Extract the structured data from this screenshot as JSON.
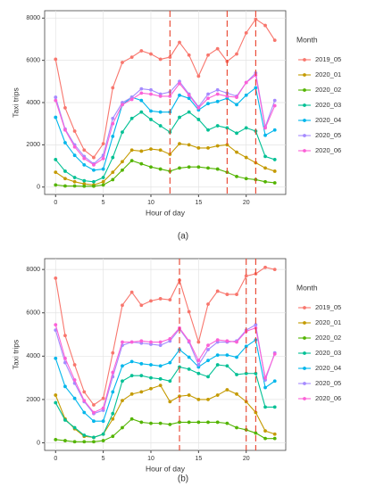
{
  "chart_data": [
    {
      "type": "line",
      "caption": "(a)",
      "x_label": "Hour of day",
      "y_label": "Taxi trips",
      "legend_title": "Month",
      "legend": "right",
      "grid": true,
      "x": [
        0,
        1,
        2,
        3,
        4,
        5,
        6,
        7,
        8,
        9,
        10,
        11,
        12,
        13,
        14,
        15,
        16,
        17,
        18,
        19,
        20,
        21,
        22,
        23
      ],
      "xlim": [
        -1.15,
        24.15
      ],
      "xticks": [
        0,
        5,
        10,
        15,
        20
      ],
      "ylim": [
        -350,
        8350
      ],
      "yticks": [
        0,
        2000,
        4000,
        6000,
        8000
      ],
      "vlines": [
        12,
        18,
        21
      ],
      "vline_color": "#e8402a",
      "series": [
        {
          "name": "2019_05",
          "color": "#F8766D",
          "values": [
            6050,
            3750,
            2650,
            1750,
            1400,
            2050,
            4700,
            5900,
            6150,
            6450,
            6300,
            6050,
            6150,
            6850,
            6250,
            5250,
            6250,
            6550,
            5950,
            6300,
            7300,
            7950,
            7650,
            6950
          ]
        },
        {
          "name": "2020_01",
          "color": "#C49A00",
          "values": [
            700,
            400,
            250,
            150,
            100,
            250,
            700,
            1200,
            1750,
            1700,
            1800,
            1750,
            1550,
            2050,
            2000,
            1850,
            1850,
            1950,
            2000,
            1650,
            1400,
            1150,
            900,
            750
          ]
        },
        {
          "name": "2020_02",
          "color": "#53B400",
          "values": [
            100,
            50,
            50,
            40,
            40,
            100,
            350,
            800,
            1250,
            1100,
            950,
            850,
            750,
            900,
            950,
            950,
            900,
            850,
            700,
            500,
            400,
            350,
            250,
            200
          ]
        },
        {
          "name": "2020_03",
          "color": "#00C094",
          "values": [
            1300,
            750,
            450,
            300,
            250,
            450,
            1400,
            2600,
            3250,
            3550,
            3200,
            2900,
            2600,
            3300,
            3550,
            3200,
            2700,
            2900,
            2800,
            2550,
            2800,
            2650,
            1450,
            1300
          ]
        },
        {
          "name": "2020_04",
          "color": "#00B6EB",
          "values": [
            3300,
            2100,
            1500,
            1050,
            800,
            850,
            2400,
            3900,
            4250,
            4100,
            3600,
            3550,
            3550,
            4350,
            4200,
            3650,
            3950,
            4050,
            4200,
            3900,
            4350,
            4700,
            2450,
            2700
          ]
        },
        {
          "name": "2020_05",
          "color": "#A58AFF",
          "values": [
            4250,
            2750,
            2000,
            1450,
            1100,
            1500,
            3250,
            4000,
            4250,
            4650,
            4600,
            4400,
            4500,
            5000,
            4400,
            3800,
            4400,
            4600,
            4450,
            4300,
            4950,
            5400,
            2850,
            4100
          ]
        },
        {
          "name": "2020_06",
          "color": "#FB61D7",
          "values": [
            4100,
            2700,
            1900,
            1350,
            1050,
            1350,
            3000,
            3900,
            4150,
            4450,
            4400,
            4300,
            4300,
            4900,
            4350,
            3750,
            4200,
            4400,
            4300,
            4250,
            4950,
            5300,
            2800,
            3850
          ]
        }
      ]
    },
    {
      "type": "line",
      "caption": "(b)",
      "x_label": "Hour of day",
      "y_label": "Taxi trips",
      "legend_title": "Month",
      "legend": "right",
      "grid": true,
      "x": [
        0,
        1,
        2,
        3,
        4,
        5,
        6,
        7,
        8,
        9,
        10,
        11,
        12,
        13,
        14,
        15,
        16,
        17,
        18,
        19,
        20,
        21,
        22,
        23
      ],
      "xlim": [
        -1.15,
        24.15
      ],
      "xticks": [
        0,
        5,
        10,
        15,
        20
      ],
      "ylim": [
        -350,
        8500
      ],
      "yticks": [
        0,
        2000,
        4000,
        6000,
        8000
      ],
      "vlines": [
        13,
        20,
        21
      ],
      "vline_color": "#e8402a",
      "series": [
        {
          "name": "2019_05",
          "color": "#F8766D",
          "values": [
            7600,
            4950,
            3600,
            2350,
            1750,
            2050,
            4150,
            6350,
            6950,
            6350,
            6550,
            6650,
            6600,
            7500,
            6050,
            4650,
            6400,
            7000,
            6850,
            6850,
            7700,
            7800,
            8100,
            8000
          ]
        },
        {
          "name": "2020_01",
          "color": "#C49A00",
          "values": [
            2200,
            1100,
            650,
            300,
            250,
            400,
            1100,
            1950,
            2250,
            2350,
            2500,
            2650,
            1900,
            2150,
            2200,
            2000,
            2000,
            2200,
            2450,
            2250,
            1900,
            1400,
            550,
            400
          ]
        },
        {
          "name": "2020_02",
          "color": "#53B400",
          "values": [
            150,
            100,
            50,
            50,
            50,
            100,
            300,
            700,
            1100,
            950,
            900,
            900,
            850,
            950,
            950,
            950,
            950,
            950,
            900,
            700,
            600,
            450,
            200,
            200
          ]
        },
        {
          "name": "2020_03",
          "color": "#00C094",
          "values": [
            1850,
            1050,
            700,
            350,
            250,
            400,
            1350,
            2850,
            3100,
            3100,
            3000,
            2950,
            2850,
            3500,
            3400,
            3200,
            3050,
            3600,
            3550,
            3150,
            3200,
            3200,
            1650,
            1650
          ]
        },
        {
          "name": "2020_04",
          "color": "#00B6EB",
          "values": [
            3900,
            2600,
            2050,
            1400,
            1000,
            1000,
            2350,
            3550,
            3750,
            3650,
            3600,
            3550,
            3700,
            4300,
            3950,
            3500,
            3800,
            4050,
            4050,
            3950,
            4450,
            4750,
            2550,
            2850
          ]
        },
        {
          "name": "2020_05",
          "color": "#A58AFF",
          "values": [
            5200,
            3700,
            2750,
            1900,
            1350,
            1500,
            3050,
            4500,
            4650,
            4600,
            4550,
            4500,
            4700,
            5250,
            4650,
            3600,
            4300,
            4650,
            4650,
            4700,
            5200,
            5450,
            2900,
            4150
          ]
        },
        {
          "name": "2020_06",
          "color": "#FB61D7",
          "values": [
            5450,
            3900,
            2900,
            1950,
            1400,
            1600,
            3250,
            4650,
            4650,
            4700,
            4650,
            4650,
            4800,
            5300,
            4700,
            3800,
            4500,
            4750,
            4700,
            4650,
            5150,
            5300,
            3000,
            4100
          ]
        }
      ]
    }
  ]
}
